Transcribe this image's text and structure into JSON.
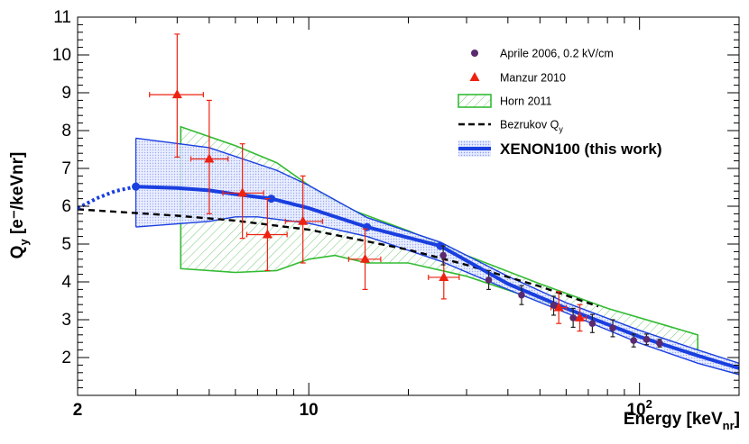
{
  "chart_data": {
    "type": "scatter",
    "xscale": "log",
    "xlim": [
      2,
      200
    ],
    "ylim": [
      1,
      11
    ],
    "xlabel": "Energy [keV",
    "xlabel_sub": "nr",
    "xlabel_end": "]",
    "ylabel": "Q",
    "ylabel_sub": "y",
    "ylabel_unit": " [e⁻/keVnr]",
    "x_ticks": [
      {
        "value": 2,
        "label": "2"
      },
      {
        "value": 10,
        "label": "10"
      },
      {
        "value": 100,
        "label": "10",
        "sup": "2"
      }
    ],
    "y_ticks": [
      {
        "value": 2,
        "label": "2"
      },
      {
        "value": 3,
        "label": "3"
      },
      {
        "value": 4,
        "label": "4"
      },
      {
        "value": 5,
        "label": "5"
      },
      {
        "value": 6,
        "label": "6"
      },
      {
        "value": 7,
        "label": "7"
      },
      {
        "value": 8,
        "label": "8"
      },
      {
        "value": 9,
        "label": "9"
      },
      {
        "value": 10,
        "label": "10"
      },
      {
        "value": 11,
        "label": "11"
      }
    ],
    "legend": {
      "position": "top-right",
      "entries": [
        {
          "label": "Aprile 2006, 0.2 kV/cm",
          "marker": "circle",
          "color": "#5a2a6e"
        },
        {
          "label": "Manzur 2010",
          "marker": "triangle",
          "color": "#ee2211"
        },
        {
          "label": "Horn 2011",
          "marker": "box",
          "color": "#33bb33"
        },
        {
          "label": "Bezrukov Q",
          "label_sub": "y",
          "marker": "dashed",
          "color": "#000000"
        },
        {
          "label": "XENON100 (this work)",
          "marker": "band",
          "color": "#1a3fe0"
        }
      ]
    },
    "series": [
      {
        "name": "Aprile 2006, 0.2 kV/cm",
        "type": "points",
        "points": [
          {
            "x": 25.5,
            "y": 4.7,
            "ylo": 4.45,
            "yhi": 4.95
          },
          {
            "x": 35,
            "y": 4.05,
            "ylo": 3.8,
            "yhi": 4.3
          },
          {
            "x": 44,
            "y": 3.65,
            "ylo": 3.4,
            "yhi": 3.9
          },
          {
            "x": 55,
            "y": 3.38,
            "ylo": 3.12,
            "yhi": 3.62
          },
          {
            "x": 63,
            "y": 3.05,
            "ylo": 2.8,
            "yhi": 3.3
          },
          {
            "x": 72,
            "y": 2.9,
            "ylo": 2.66,
            "yhi": 3.14
          },
          {
            "x": 83,
            "y": 2.78,
            "ylo": 2.55,
            "yhi": 3.0
          },
          {
            "x": 96,
            "y": 2.45,
            "ylo": 2.28,
            "yhi": 2.62
          },
          {
            "x": 105,
            "y": 2.48,
            "ylo": 2.34,
            "yhi": 2.62
          },
          {
            "x": 115,
            "y": 2.38,
            "ylo": 2.28,
            "yhi": 2.48
          }
        ]
      },
      {
        "name": "Manzur 2010",
        "type": "points",
        "points": [
          {
            "x": 4.0,
            "y": 8.95,
            "xlo": 3.3,
            "xhi": 4.8,
            "ylo": 7.3,
            "yhi": 10.55
          },
          {
            "x": 5.0,
            "y": 7.25,
            "xlo": 4.4,
            "xhi": 5.7,
            "ylo": 5.8,
            "yhi": 8.8
          },
          {
            "x": 6.3,
            "y": 6.35,
            "xlo": 5.5,
            "xhi": 7.3,
            "ylo": 5.15,
            "yhi": 7.65
          },
          {
            "x": 7.5,
            "y": 5.25,
            "xlo": 6.5,
            "xhi": 8.6,
            "ylo": 4.3,
            "yhi": 6.2
          },
          {
            "x": 9.6,
            "y": 5.6,
            "xlo": 8.5,
            "xhi": 11.0,
            "ylo": 4.5,
            "yhi": 6.8
          },
          {
            "x": 14.8,
            "y": 4.6,
            "xlo": 13.2,
            "xhi": 16.5,
            "ylo": 3.8,
            "yhi": 5.4
          },
          {
            "x": 25.6,
            "y": 4.12,
            "xlo": 23.0,
            "xhi": 28.5,
            "ylo": 3.55,
            "yhi": 4.7
          },
          {
            "x": 57,
            "y": 3.32,
            "xlo": 54,
            "xhi": 60,
            "ylo": 2.9,
            "yhi": 3.74
          },
          {
            "x": 66,
            "y": 3.05,
            "xlo": 63,
            "xhi": 69,
            "ylo": 2.7,
            "yhi": 3.4
          }
        ]
      },
      {
        "name": "Horn 2011",
        "type": "band",
        "upper": [
          [
            4.1,
            8.1
          ],
          [
            6,
            7.6
          ],
          [
            8,
            7.15
          ],
          [
            11,
            6.3
          ],
          [
            14,
            5.85
          ],
          [
            20,
            5.35
          ],
          [
            30,
            4.7
          ],
          [
            50,
            3.95
          ],
          [
            80,
            3.3
          ],
          [
            120,
            2.85
          ],
          [
            150,
            2.6
          ]
        ],
        "lower": [
          [
            4.1,
            4.35
          ],
          [
            6,
            4.25
          ],
          [
            8,
            4.3
          ],
          [
            10,
            4.6
          ],
          [
            12,
            4.7
          ],
          [
            15,
            4.5
          ],
          [
            20,
            4.5
          ],
          [
            30,
            4.15
          ],
          [
            50,
            3.5
          ],
          [
            80,
            2.9
          ],
          [
            120,
            2.35
          ],
          [
            150,
            2.1
          ]
        ]
      },
      {
        "name": "Bezrukov Q",
        "type": "dashed-line",
        "points": [
          [
            2,
            5.92
          ],
          [
            4,
            5.75
          ],
          [
            6,
            5.62
          ],
          [
            10,
            5.38
          ],
          [
            20,
            4.85
          ],
          [
            30,
            4.45
          ],
          [
            50,
            3.88
          ],
          [
            75,
            3.35
          ]
        ]
      },
      {
        "name": "XENON100 (this work)",
        "type": "band",
        "upper": [
          [
            3,
            7.8
          ],
          [
            5,
            7.55
          ],
          [
            8,
            6.95
          ],
          [
            10,
            6.55
          ],
          [
            15,
            5.7
          ],
          [
            25,
            5.05
          ],
          [
            40,
            4.15
          ],
          [
            60,
            3.45
          ],
          [
            100,
            2.72
          ],
          [
            150,
            2.2
          ],
          [
            200,
            1.85
          ]
        ],
        "lower": [
          [
            3,
            5.45
          ],
          [
            5,
            5.6
          ],
          [
            6,
            5.72
          ],
          [
            7,
            5.72
          ],
          [
            10,
            5.55
          ],
          [
            15,
            5.2
          ],
          [
            25,
            4.55
          ],
          [
            40,
            3.8
          ],
          [
            60,
            3.18
          ],
          [
            100,
            2.38
          ],
          [
            150,
            1.85
          ],
          [
            200,
            1.55
          ]
        ],
        "central": [
          [
            3,
            6.52
          ],
          [
            4,
            6.48
          ],
          [
            5,
            6.42
          ],
          [
            6,
            6.32
          ],
          [
            7.7,
            6.2
          ],
          [
            10,
            5.95
          ],
          [
            15,
            5.45
          ],
          [
            25,
            4.95
          ],
          [
            40,
            3.95
          ],
          [
            60,
            3.3
          ],
          [
            100,
            2.55
          ],
          [
            150,
            2.05
          ],
          [
            200,
            1.72
          ]
        ],
        "central_markers": [
          [
            3,
            6.52
          ],
          [
            7.7,
            6.2
          ],
          [
            15,
            5.45
          ],
          [
            25,
            4.95
          ]
        ],
        "extrapolation": [
          [
            2,
            5.95
          ],
          [
            2.3,
            6.22
          ],
          [
            2.6,
            6.4
          ],
          [
            3,
            6.52
          ]
        ]
      }
    ]
  }
}
